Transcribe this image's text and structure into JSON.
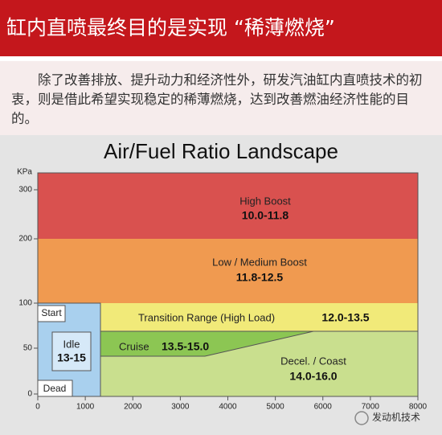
{
  "header": {
    "title": "缸内直喷最终目的是实现 “稀薄燃烧”"
  },
  "intro": "除了改善排放、提升动力和经济性外，研发汽油缸内直喷技术的初衷，则是借此希望实现稳定的稀薄燃烧，达到改善燃油经济性能的目的。",
  "diagram": {
    "title": "Air/Fuel Ratio Landscape",
    "y_unit": "KPa",
    "yticks": [
      0,
      50,
      100,
      200,
      300
    ],
    "xticks": [
      0,
      1000,
      2000,
      3000,
      4000,
      5000,
      6000,
      7000,
      8000
    ],
    "regions": {
      "high_boost": {
        "label": "High Boost",
        "range": "10.0-11.8"
      },
      "low_medium_boost": {
        "label": "Low / Medium Boost",
        "range": "11.8-12.5"
      },
      "transition": {
        "label": "Transition Range (High Load)",
        "range": "12.0-13.5"
      },
      "cruise": {
        "label": "Cruise",
        "range": "13.5-15.0"
      },
      "decel": {
        "label": "Decel. / Coast",
        "range": "14.0-16.0"
      },
      "idle": {
        "label": "Idle",
        "range": "13-15"
      },
      "start": {
        "label": "Start"
      },
      "dead": {
        "label": "Dead"
      }
    }
  },
  "watermark": "发动机技术"
}
